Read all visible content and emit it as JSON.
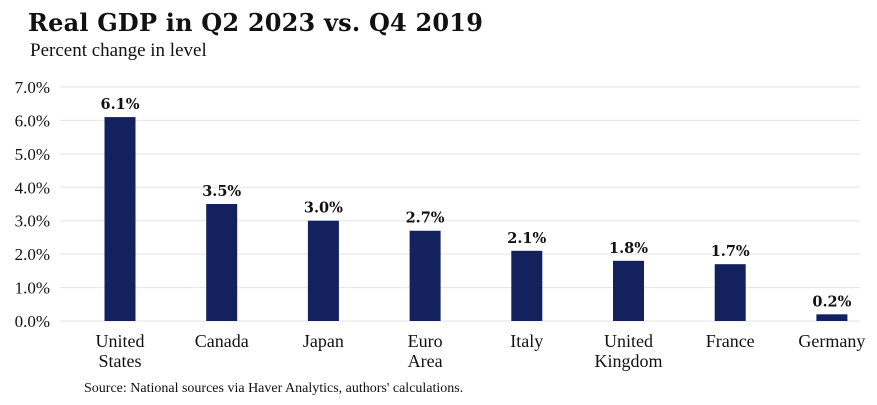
{
  "header": {
    "title": "Real GDP in Q2 2023 vs. Q4 2019",
    "subtitle": "Percent change in level"
  },
  "footer": {
    "source": "Source: National sources via Haver Analytics, authors' calculations."
  },
  "colors": {
    "bar": "#13215e",
    "grid": "#e3e3e3",
    "text": "#111111"
  },
  "chart_data": {
    "type": "bar",
    "title": "Real GDP in Q2 2023 vs. Q4 2019",
    "subtitle": "Percent change in level",
    "categories": [
      [
        "United",
        "States"
      ],
      [
        "Canada"
      ],
      [
        "Japan"
      ],
      [
        "Euro",
        "Area"
      ],
      [
        "Italy"
      ],
      [
        "United",
        "Kingdom"
      ],
      [
        "France"
      ],
      [
        "Germany"
      ]
    ],
    "values": [
      6.1,
      3.5,
      3.0,
      2.7,
      2.1,
      1.8,
      1.7,
      0.2
    ],
    "data_labels": [
      "6.1%",
      "3.5%",
      "3.0%",
      "2.7%",
      "2.1%",
      "1.8%",
      "1.7%",
      "0.2%"
    ],
    "ylim": [
      0,
      7
    ],
    "yticks": [
      0,
      1,
      2,
      3,
      4,
      5,
      6,
      7
    ],
    "ytick_labels": [
      "0.0%",
      "1.0%",
      "2.0%",
      "3.0%",
      "4.0%",
      "5.0%",
      "6.0%",
      "7.0%"
    ],
    "grid": true,
    "legend": false
  }
}
